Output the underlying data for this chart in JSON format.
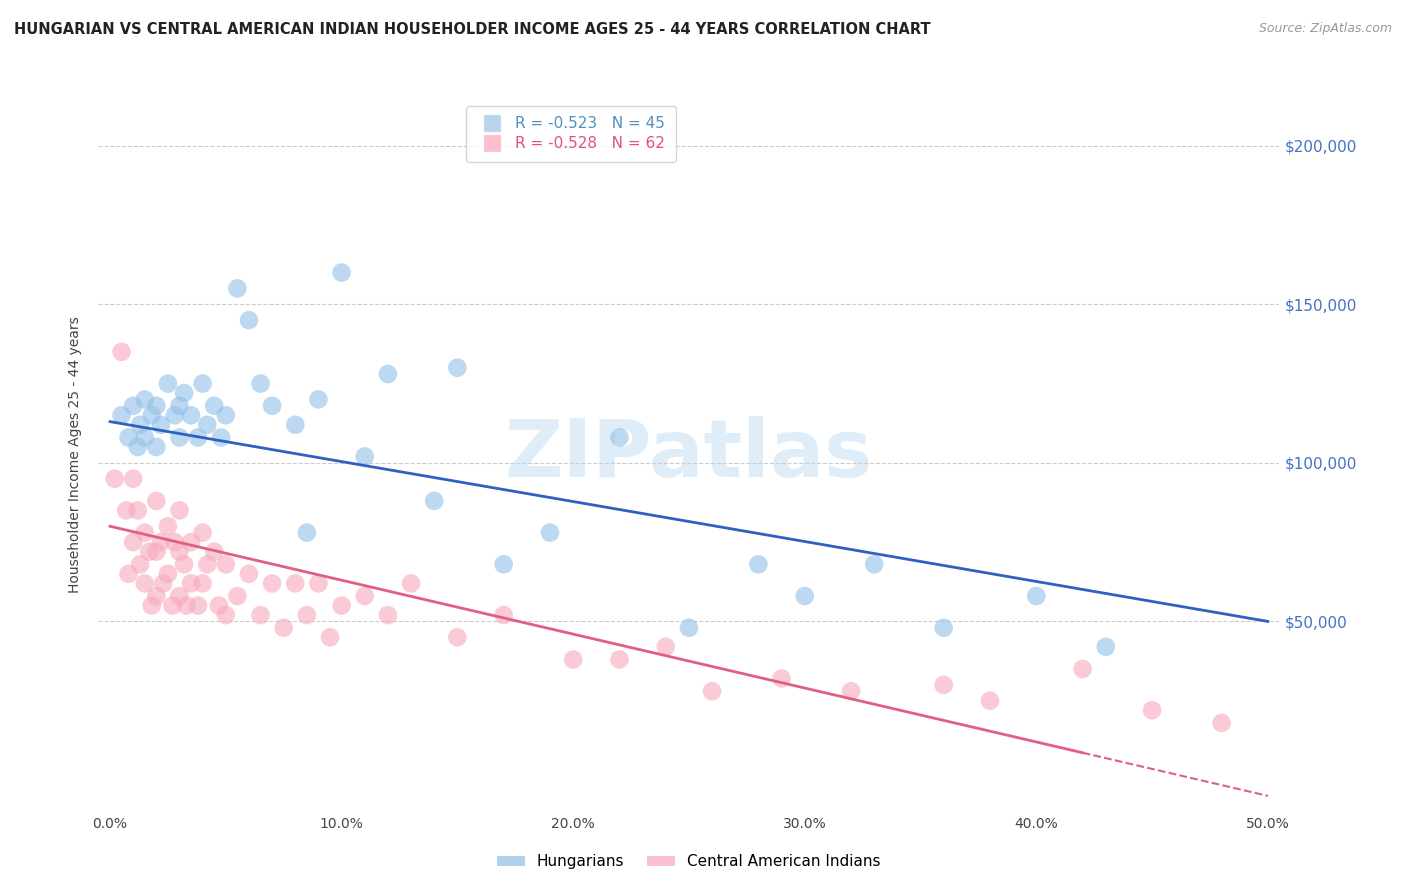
{
  "title": "HUNGARIAN VS CENTRAL AMERICAN INDIAN HOUSEHOLDER INCOME AGES 25 - 44 YEARS CORRELATION CHART",
  "source": "Source: ZipAtlas.com",
  "ylabel": "Householder Income Ages 25 - 44 years",
  "right_ytick_labels": [
    "$200,000",
    "$150,000",
    "$100,000",
    "$50,000"
  ],
  "right_ytick_values": [
    200000,
    150000,
    100000,
    50000
  ],
  "ylim": [
    -10000,
    215000
  ],
  "xlim": [
    -0.005,
    0.505
  ],
  "xtick_labels": [
    "0.0%",
    "10.0%",
    "20.0%",
    "30.0%",
    "40.0%",
    "50.0%"
  ],
  "xtick_values": [
    0.0,
    0.1,
    0.2,
    0.3,
    0.4,
    0.5
  ],
  "legend_entries": [
    {
      "label": "R = -0.523   N = 45",
      "color": "#a8c8e8"
    },
    {
      "label": "R = -0.528   N = 62",
      "color": "#f8b0c0"
    }
  ],
  "legend_labels_bottom": [
    "Hungarians",
    "Central American Indians"
  ],
  "blue_scatter_color": "#90c0e8",
  "pink_scatter_color": "#f8a8bc",
  "blue_line_color": "#3060c0",
  "pink_line_color": "#e06080",
  "watermark": "ZIPatlas",
  "hungarian_x": [
    0.005,
    0.008,
    0.01,
    0.012,
    0.013,
    0.015,
    0.015,
    0.018,
    0.02,
    0.02,
    0.022,
    0.025,
    0.028,
    0.03,
    0.03,
    0.032,
    0.035,
    0.038,
    0.04,
    0.042,
    0.045,
    0.048,
    0.05,
    0.055,
    0.06,
    0.065,
    0.07,
    0.08,
    0.085,
    0.09,
    0.1,
    0.11,
    0.12,
    0.14,
    0.15,
    0.17,
    0.19,
    0.22,
    0.25,
    0.28,
    0.3,
    0.33,
    0.36,
    0.4,
    0.43
  ],
  "hungarian_y": [
    115000,
    108000,
    118000,
    105000,
    112000,
    120000,
    108000,
    115000,
    118000,
    105000,
    112000,
    125000,
    115000,
    118000,
    108000,
    122000,
    115000,
    108000,
    125000,
    112000,
    118000,
    108000,
    115000,
    155000,
    145000,
    125000,
    118000,
    112000,
    78000,
    120000,
    160000,
    102000,
    128000,
    88000,
    130000,
    68000,
    78000,
    108000,
    48000,
    68000,
    58000,
    68000,
    48000,
    58000,
    42000
  ],
  "central_x": [
    0.002,
    0.005,
    0.007,
    0.008,
    0.01,
    0.01,
    0.012,
    0.013,
    0.015,
    0.015,
    0.017,
    0.018,
    0.02,
    0.02,
    0.02,
    0.022,
    0.023,
    0.025,
    0.025,
    0.027,
    0.028,
    0.03,
    0.03,
    0.03,
    0.032,
    0.033,
    0.035,
    0.035,
    0.038,
    0.04,
    0.04,
    0.042,
    0.045,
    0.047,
    0.05,
    0.05,
    0.055,
    0.06,
    0.065,
    0.07,
    0.075,
    0.08,
    0.085,
    0.09,
    0.095,
    0.1,
    0.11,
    0.12,
    0.13,
    0.15,
    0.17,
    0.2,
    0.22,
    0.24,
    0.26,
    0.29,
    0.32,
    0.36,
    0.38,
    0.42,
    0.45,
    0.48
  ],
  "central_y": [
    95000,
    135000,
    85000,
    65000,
    95000,
    75000,
    85000,
    68000,
    78000,
    62000,
    72000,
    55000,
    88000,
    72000,
    58000,
    75000,
    62000,
    80000,
    65000,
    55000,
    75000,
    85000,
    72000,
    58000,
    68000,
    55000,
    75000,
    62000,
    55000,
    78000,
    62000,
    68000,
    72000,
    55000,
    68000,
    52000,
    58000,
    65000,
    52000,
    62000,
    48000,
    62000,
    52000,
    62000,
    45000,
    55000,
    58000,
    52000,
    62000,
    45000,
    52000,
    38000,
    38000,
    42000,
    28000,
    32000,
    28000,
    30000,
    25000,
    35000,
    22000,
    18000
  ]
}
